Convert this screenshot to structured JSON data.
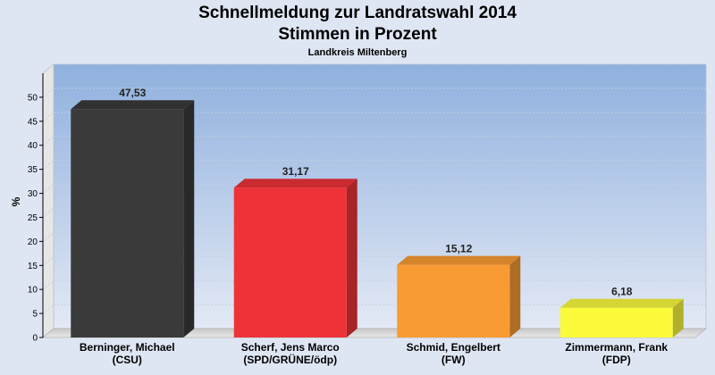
{
  "title": "Schnellmeldung zur Landratswahl 2014",
  "subtitle": "Stimmen in Prozent",
  "subsubtitle": "Landkreis Miltenberg",
  "chart_data": {
    "type": "bar",
    "title": "Schnellmeldung zur Landratswahl 2014",
    "subtitle": "Stimmen in Prozent",
    "xlabel": "",
    "ylabel": "%",
    "ylim": [
      0,
      55
    ],
    "yticks": [
      0,
      5,
      10,
      15,
      20,
      25,
      30,
      35,
      40,
      45,
      50
    ],
    "grid": true,
    "categories": [
      [
        "Berninger, Michael",
        "(CSU)"
      ],
      [
        "Scherf, Jens Marco",
        "(SPD/GRÜNE/ödp)"
      ],
      [
        "Schmid, Engelbert",
        "(FW)"
      ],
      [
        "Zimmermann, Frank",
        "(FDP)"
      ]
    ],
    "values": [
      47.53,
      31.17,
      15.12,
      6.18
    ],
    "value_labels": [
      "47,53",
      "31,17",
      "15,12",
      "6,18"
    ],
    "colors": [
      "#3a3a3a",
      "#ee3338",
      "#f99b33",
      "#fbfb3c"
    ]
  }
}
